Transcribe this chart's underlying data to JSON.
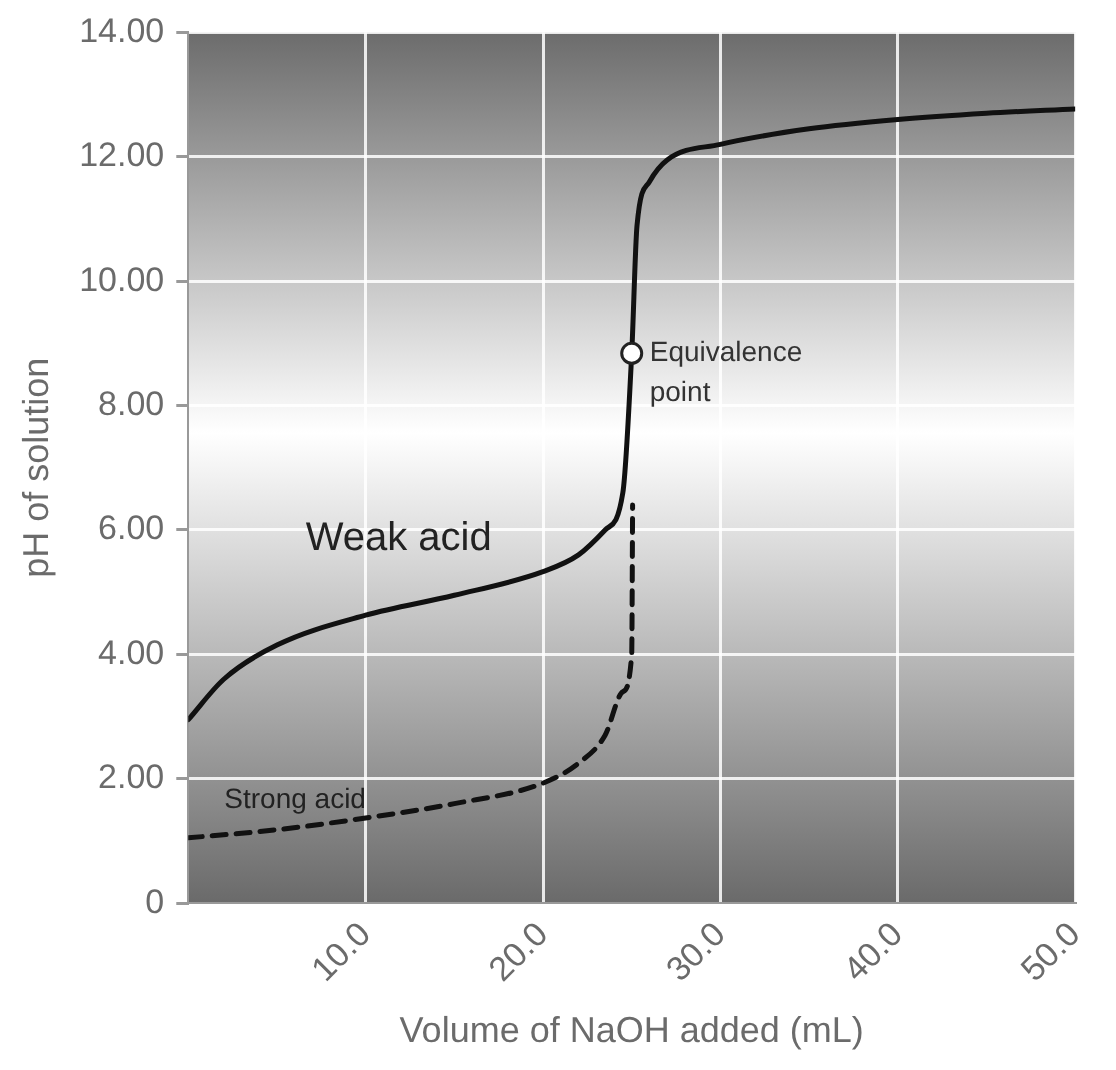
{
  "chart_data": {
    "type": "line",
    "xlabel": "Volume of NaOH added (mL)",
    "ylabel": "pH of solution",
    "xlim": [
      0,
      50
    ],
    "xticks": [
      {
        "value": 10,
        "label": "10.0"
      },
      {
        "value": 20,
        "label": "20.0"
      },
      {
        "value": 30,
        "label": "30.0"
      },
      {
        "value": 40,
        "label": "40.0"
      },
      {
        "value": 50,
        "label": "50.0"
      }
    ],
    "ylim": [
      0,
      14
    ],
    "yticks": [
      0,
      {
        "value": 2,
        "label": "2.00"
      },
      {
        "value": 4,
        "label": "4.00"
      },
      {
        "value": 6,
        "label": "6.00"
      },
      {
        "value": 8,
        "label": "8.00"
      },
      {
        "value": 10,
        "label": "10.00"
      },
      {
        "value": 12,
        "label": "12.00"
      },
      {
        "value": 14,
        "label": "14.00"
      }
    ],
    "grid": true,
    "legend": false,
    "marker": "none",
    "series": [
      {
        "name": "Weak acid",
        "color": "#111111",
        "line_style": "solid",
        "x": [
          0,
          2,
          5,
          10,
          15,
          20,
          22,
          23.5,
          24.5,
          25,
          25.3,
          26,
          27,
          30,
          35,
          40,
          45,
          50
        ],
        "values": [
          2.95,
          3.6,
          4.15,
          4.63,
          4.95,
          5.33,
          5.6,
          6.0,
          6.6,
          8.84,
          10.9,
          11.6,
          11.95,
          12.2,
          12.45,
          12.6,
          12.7,
          12.77
        ]
      },
      {
        "name": "Strong acid",
        "color": "#111111",
        "line_style": "dashed",
        "x": [
          0,
          5,
          10,
          15,
          20,
          22,
          23.5,
          24.5,
          25,
          25.05
        ],
        "values": [
          1.05,
          1.18,
          1.37,
          1.6,
          1.93,
          2.25,
          2.7,
          3.4,
          4.0,
          6.4
        ]
      }
    ],
    "annotations": [
      {
        "text": "Equivalence point",
        "x": 25,
        "y": 8.84
      }
    ]
  }
}
